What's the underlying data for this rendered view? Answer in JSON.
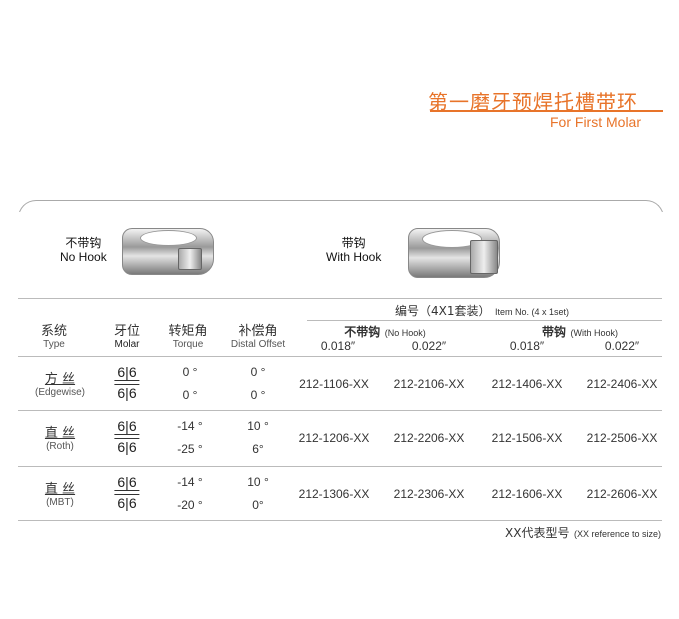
{
  "title": {
    "cn": "第一磨牙预焊托槽带环",
    "en": "For First Molar"
  },
  "products": [
    {
      "cn": "不带钩",
      "en": "No Hook"
    },
    {
      "cn": "带钩",
      "en": "With Hook"
    }
  ],
  "colors": {
    "accent": "#e8742a"
  },
  "table": {
    "headers": {
      "type": {
        "cn": "系统",
        "en": "Type"
      },
      "molar": {
        "cn": "牙位",
        "en": "Molar"
      },
      "torque": {
        "cn": "转矩角",
        "en": "Torque"
      },
      "offset": {
        "cn": "补偿角",
        "en": "Distal Offset"
      },
      "item_no": {
        "cn": "编号（4X1套装）",
        "en": "Item No. (4 x 1set)"
      },
      "no_hook": {
        "cn": "不带钩",
        "en": "(No Hook)"
      },
      "with_hook": {
        "cn": "带钩",
        "en": "(With Hook)"
      },
      "sizes": [
        "0.018″",
        "0.022″",
        "0.018″",
        "0.022″"
      ]
    },
    "rows": [
      {
        "cn": "方 丝",
        "en": "(Edgewise)",
        "molar_upper": "6|6",
        "molar_lower": "6|6",
        "torque": [
          "0 °",
          "0 °"
        ],
        "offset": [
          "0 °",
          "0 °"
        ],
        "codes": [
          "212-1106-XX",
          "212-2106-XX",
          "212-1406-XX",
          "212-2406-XX"
        ]
      },
      {
        "cn": "直 丝",
        "en": "(Roth)",
        "molar_upper": "6|6",
        "molar_lower": "6|6",
        "torque": [
          "-14 °",
          "-25 °"
        ],
        "offset": [
          "10 °",
          "6°"
        ],
        "codes": [
          "212-1206-XX",
          "212-2206-XX",
          "212-1506-XX",
          "212-2506-XX"
        ]
      },
      {
        "cn": "直 丝",
        "en": "(MBT)",
        "molar_upper": "6|6",
        "molar_lower": "6|6",
        "torque": [
          "-14 °",
          "-20 °"
        ],
        "offset": [
          "10 °",
          "0°"
        ],
        "codes": [
          "212-1306-XX",
          "212-2306-XX",
          "212-1606-XX",
          "212-2606-XX"
        ]
      }
    ],
    "footnote": {
      "cn": "XX代表型号",
      "en": "(XX reference to size)"
    }
  }
}
